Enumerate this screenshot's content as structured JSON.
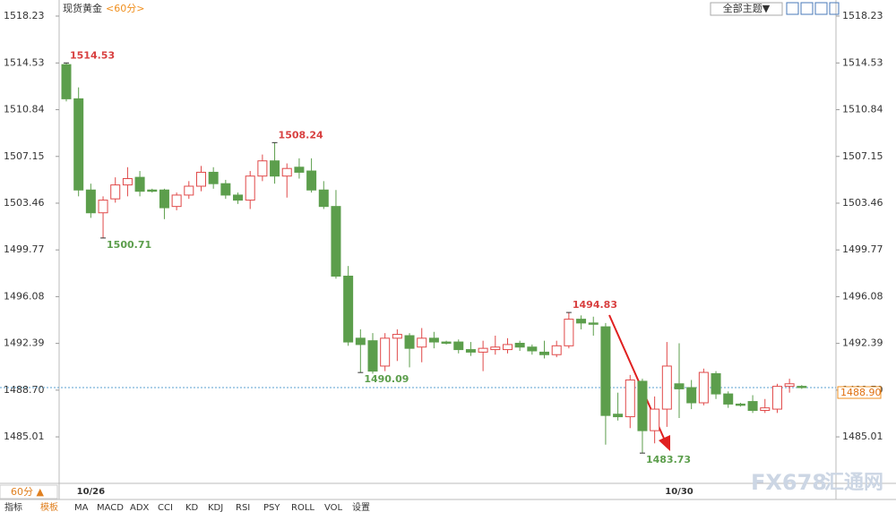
{
  "ui": {
    "symbol": "现货黄金",
    "period_tag": "<60分>",
    "theme_button": "全部主题▼",
    "period_select": "60分 ▲",
    "tabs": [
      "指标",
      "模板",
      "MA",
      "MACD",
      "ADX",
      "CCI",
      "KD",
      "KDJ",
      "RSI",
      "PSY",
      "ROLL",
      "VOL",
      "设置"
    ],
    "watermark": [
      "FX678",
      "汇通网"
    ]
  },
  "chart_data": {
    "type": "candlestick",
    "categories": [
      null,
      null,
      "10/26",
      null,
      null,
      null,
      null,
      null,
      null,
      null,
      null,
      null,
      null,
      null,
      null,
      null,
      null,
      null,
      null,
      null,
      null,
      null,
      null,
      null,
      null,
      null,
      null,
      null,
      null,
      null,
      null,
      null,
      null,
      null,
      null,
      null,
      null,
      null,
      null,
      null,
      null,
      null,
      null,
      null,
      null,
      null,
      null,
      null,
      null,
      null,
      "10/30",
      null,
      null,
      null,
      null,
      null,
      null,
      null,
      null,
      null,
      null
    ],
    "open": [
      1514.4,
      1511.7,
      1504.5,
      1502.7,
      1503.8,
      1504.9,
      1505.5,
      1504.5,
      1504.5,
      1503.2,
      1504.1,
      1504.8,
      1505.9,
      1505.0,
      1504.1,
      1503.7,
      1505.6,
      1506.8,
      1505.6,
      1506.3,
      1506.0,
      1504.5,
      1503.2,
      1497.7,
      1492.8,
      1492.6,
      1490.6,
      1492.8,
      1493.0,
      1492.1,
      1492.8,
      1492.5,
      1492.5,
      1491.9,
      1491.7,
      1491.9,
      1491.9,
      1492.4,
      1492.1,
      1491.7,
      1491.5,
      1492.2,
      1494.3,
      1494.0,
      1493.7,
      1486.8,
      1486.6,
      1489.4,
      1485.5,
      1487.2,
      1489.2,
      1488.9,
      1487.7,
      1490.0,
      1488.4,
      1487.6,
      1487.8,
      1487.1,
      1487.2,
      1489.0,
      1489.0
    ],
    "high": [
      1514.53,
      1512.6,
      1505.0,
      1504.0,
      1505.5,
      1506.3,
      1506.0,
      1504.6,
      1504.6,
      1504.3,
      1505.2,
      1506.4,
      1506.3,
      1505.3,
      1504.3,
      1506.0,
      1507.3,
      1508.24,
      1506.6,
      1507.0,
      1507.0,
      1505.2,
      1504.5,
      1498.5,
      1493.5,
      1493.2,
      1493.2,
      1493.5,
      1493.2,
      1493.6,
      1493.3,
      1492.6,
      1492.7,
      1492.5,
      1492.6,
      1493.0,
      1492.8,
      1492.6,
      1492.3,
      1492.6,
      1492.6,
      1494.83,
      1494.6,
      1494.5,
      1494.0,
      1488.5,
      1489.9,
      1489.6,
      1488.2,
      1492.5,
      1492.4,
      1489.5,
      1490.4,
      1490.2,
      1488.6,
      1487.7,
      1488.3,
      1488.0,
      1489.2,
      1489.6,
      1489.1
    ],
    "low": [
      1511.5,
      1504.0,
      1502.3,
      1500.71,
      1503.5,
      1504.0,
      1504.0,
      1504.3,
      1502.2,
      1502.9,
      1503.8,
      1504.4,
      1504.6,
      1503.8,
      1503.4,
      1503.0,
      1505.2,
      1505.0,
      1503.9,
      1505.4,
      1504.3,
      1503.0,
      1497.5,
      1492.2,
      1490.09,
      1490.0,
      1490.2,
      1491.0,
      1490.5,
      1490.9,
      1492.0,
      1492.3,
      1491.6,
      1491.4,
      1490.2,
      1491.5,
      1491.6,
      1491.8,
      1491.5,
      1491.2,
      1491.3,
      1492.0,
      1493.5,
      1493.0,
      1484.4,
      1486.3,
      1485.7,
      1483.73,
      1484.5,
      1485.8,
      1486.5,
      1487.2,
      1487.5,
      1488.0,
      1487.3,
      1487.4,
      1486.9,
      1486.9,
      1486.9,
      1488.5,
      1488.8
    ],
    "close": [
      1511.7,
      1504.5,
      1502.7,
      1503.7,
      1504.9,
      1505.4,
      1504.4,
      1504.4,
      1503.1,
      1504.1,
      1504.8,
      1505.9,
      1505.0,
      1504.1,
      1503.7,
      1505.6,
      1506.8,
      1505.6,
      1506.2,
      1505.9,
      1504.5,
      1503.2,
      1497.7,
      1492.5,
      1492.3,
      1490.2,
      1492.8,
      1493.1,
      1492.0,
      1492.8,
      1492.5,
      1492.4,
      1491.9,
      1491.7,
      1492.0,
      1492.1,
      1492.3,
      1492.1,
      1491.8,
      1491.5,
      1492.2,
      1494.3,
      1494.0,
      1493.9,
      1486.7,
      1486.6,
      1489.5,
      1485.5,
      1487.2,
      1490.6,
      1488.8,
      1487.7,
      1490.1,
      1488.4,
      1487.6,
      1487.5,
      1487.1,
      1487.3,
      1489.0,
      1489.2,
      1488.9
    ],
    "up_color": "#e04848",
    "down_color": "#5c9e4c",
    "ylim": [
      1481.34,
      1519.5
    ],
    "yticks": [
      1485.01,
      {
        "value": 1488.7,
        "label": "1488.70"
      },
      1492.39,
      1496.08,
      1499.77,
      1503.46,
      1507.15,
      1510.84,
      1514.53,
      1518.23
    ],
    "current_price": {
      "value": 1488.9,
      "label": "1488.90"
    }
  }
}
